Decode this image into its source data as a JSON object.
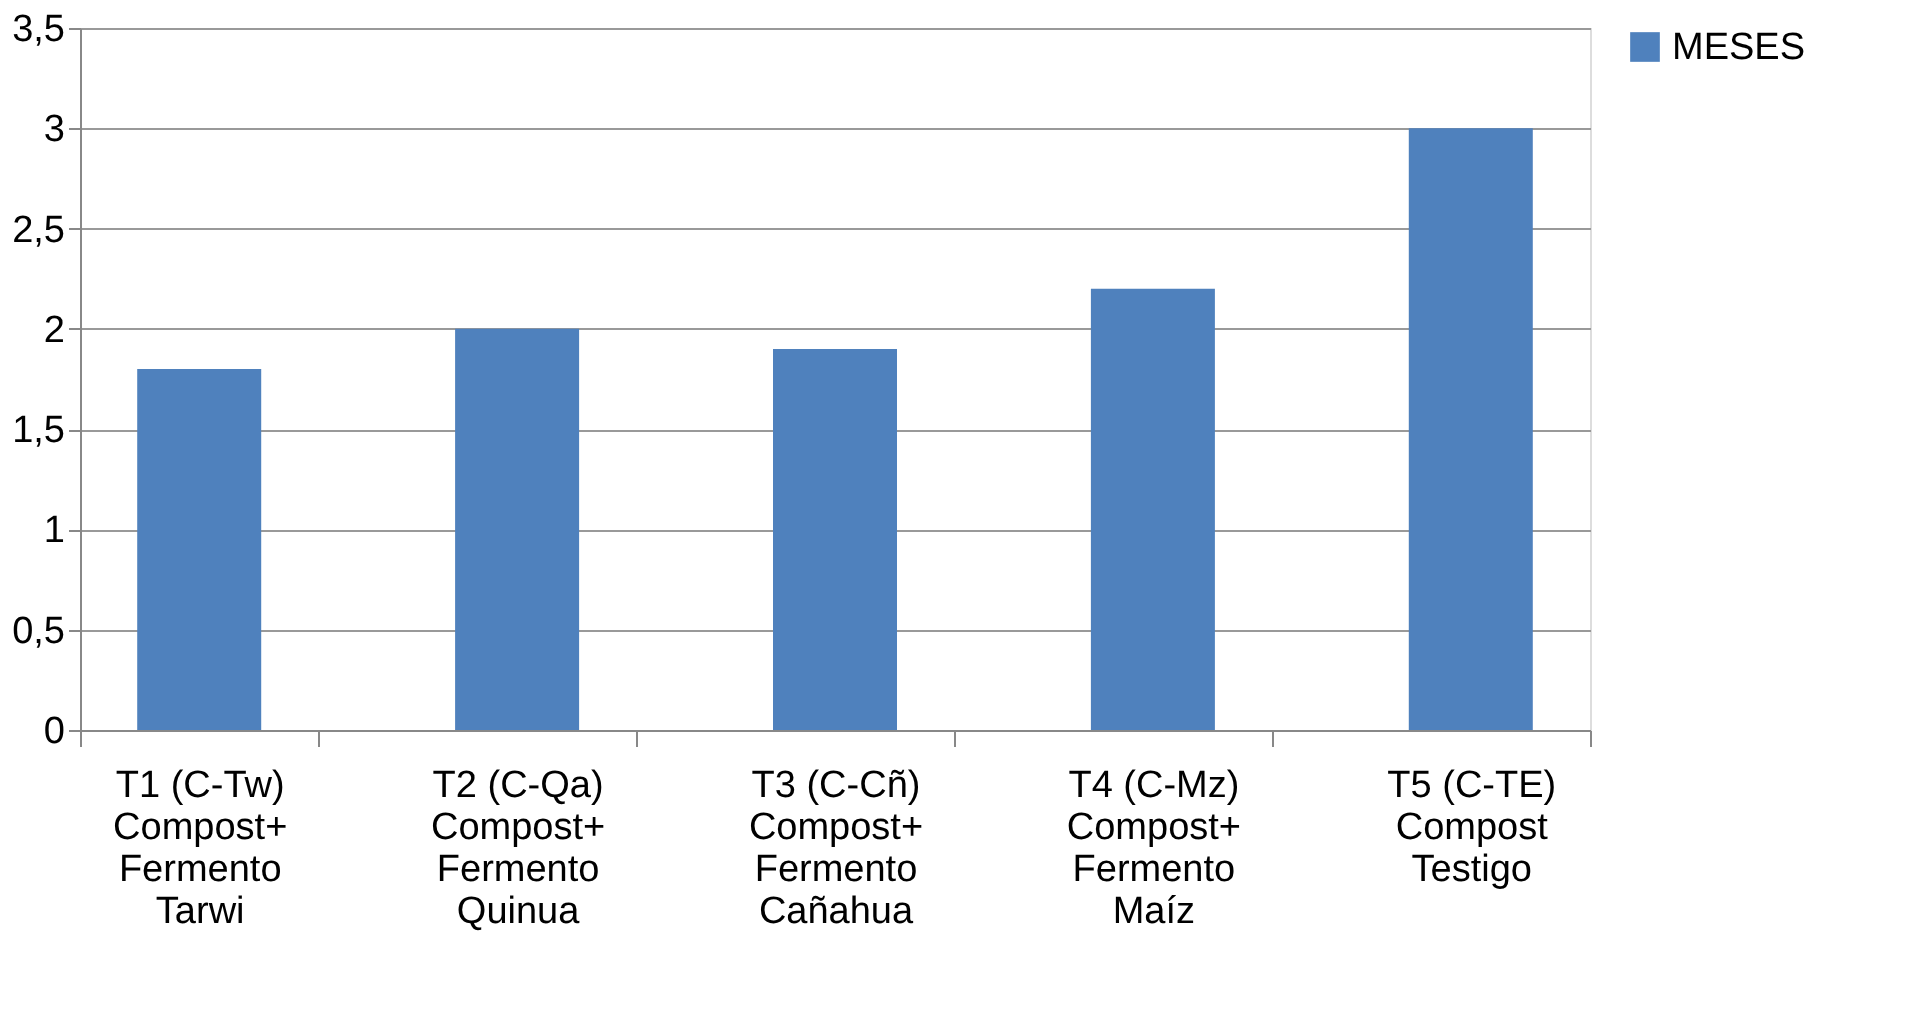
{
  "chart_data": {
    "type": "bar",
    "categories": [
      "T1 (C-Tw)\nCompost+\nFermento\nTarwi",
      "T2 (C-Qa)\nCompost+\nFermento\nQuinua",
      "T3 (C-Cñ)\nCompost+\nFermento\nCañahua",
      "T4 (C-Mz)\nCompost+\nFermento\nMaíz",
      "T5 (C-TE)\nCompost\nTestigo"
    ],
    "series": [
      {
        "name": "MESES",
        "color": "#4f81bd",
        "values": [
          1.8,
          2.0,
          1.9,
          2.2,
          3.0
        ]
      }
    ],
    "ylim": [
      0,
      3.5
    ],
    "yticks": [
      0,
      {
        "value": 0.5,
        "label": "0,5"
      },
      1,
      {
        "value": 1.5,
        "label": "1,5"
      },
      2,
      {
        "value": 2.5,
        "label": "2,5"
      },
      3,
      {
        "value": 3.5,
        "label": "3,5"
      }
    ],
    "grid": "y",
    "legend": "right"
  }
}
